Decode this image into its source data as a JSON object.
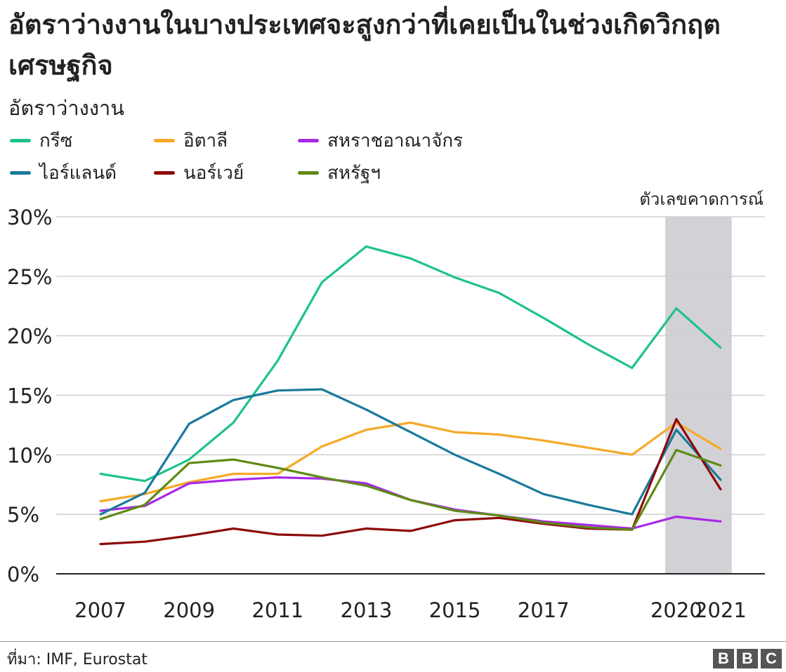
{
  "header": {
    "title": "อัตราว่างงานในบางประเทศจะสูงกว่าที่เคยเป็นในช่วงเกิดวิกฤตเศรษฐกิจ",
    "subtitle": "อัตราว่างงาน"
  },
  "legend": {
    "items": [
      {
        "label": "กรีซ",
        "color": "#1ec28c"
      },
      {
        "label": "อิตาลี",
        "color": "#f6a928"
      },
      {
        "label": "สหราชอาณาจักร",
        "color": "#a828e8"
      },
      {
        "label": "ไอร์แลนด์",
        "color": "#1a7a9c"
      },
      {
        "label": "นอร์เวย์",
        "color": "#8c0a0a"
      },
      {
        "label": "สหรัฐฯ",
        "color": "#5e8a14"
      }
    ]
  },
  "forecast_label": "ตัวเลขคาดการณ์",
  "footer": {
    "source": "ที่มา: IMF, Eurostat",
    "logo": [
      "B",
      "B",
      "C"
    ]
  },
  "chart_data": {
    "type": "line",
    "x": [
      2007,
      2008,
      2009,
      2010,
      2011,
      2012,
      2013,
      2014,
      2015,
      2016,
      2017,
      2018,
      2019,
      2020,
      2021
    ],
    "x_tick_labels": [
      "2007",
      "2009",
      "2011",
      "2013",
      "2015",
      "2017",
      "2020",
      "2021"
    ],
    "x_tick_values": [
      2007,
      2009,
      2011,
      2013,
      2015,
      2017,
      2020,
      2021
    ],
    "y_ticks": [
      0,
      5,
      10,
      15,
      20,
      25,
      30
    ],
    "y_tick_labels": [
      "0%",
      "5%",
      "10%",
      "15%",
      "20%",
      "25%",
      "30%"
    ],
    "ylim": [
      0,
      30
    ],
    "forecast_range": [
      2019.75,
      2021.25
    ],
    "forecast_color": "#d2d2d6",
    "grid": true,
    "series": [
      {
        "name": "กรีซ",
        "color": "#1ec28c",
        "values": [
          8.4,
          7.8,
          9.6,
          12.7,
          17.9,
          24.5,
          27.5,
          26.5,
          24.9,
          23.6,
          21.5,
          19.3,
          17.3,
          22.3,
          19.0
        ]
      },
      {
        "name": "อิตาลี",
        "color": "#f6a928",
        "values": [
          6.1,
          6.7,
          7.7,
          8.4,
          8.4,
          10.7,
          12.1,
          12.7,
          11.9,
          11.7,
          11.2,
          10.6,
          10.0,
          12.7,
          10.5
        ]
      },
      {
        "name": "สหราชอาณาจักร",
        "color": "#a828e8",
        "values": [
          5.3,
          5.7,
          7.6,
          7.9,
          8.1,
          8.0,
          7.6,
          6.2,
          5.4,
          4.9,
          4.4,
          4.1,
          3.8,
          4.8,
          4.4
        ]
      },
      {
        "name": "ไอร์แลนด์",
        "color": "#1a7a9c",
        "values": [
          5.0,
          6.8,
          12.6,
          14.6,
          15.4,
          15.5,
          13.8,
          11.9,
          10.0,
          8.4,
          6.7,
          5.8,
          5.0,
          12.1,
          7.9
        ]
      },
      {
        "name": "นอร์เวย์",
        "color": "#8c0a0a",
        "values": [
          2.5,
          2.7,
          3.2,
          3.8,
          3.3,
          3.2,
          3.8,
          3.6,
          4.5,
          4.7,
          4.2,
          3.8,
          3.7,
          13.0,
          7.1
        ]
      },
      {
        "name": "สหรัฐฯ",
        "color": "#5e8a14",
        "values": [
          4.6,
          5.8,
          9.3,
          9.6,
          8.9,
          8.1,
          7.4,
          6.2,
          5.3,
          4.9,
          4.3,
          3.9,
          3.7,
          10.4,
          9.1
        ]
      }
    ]
  }
}
